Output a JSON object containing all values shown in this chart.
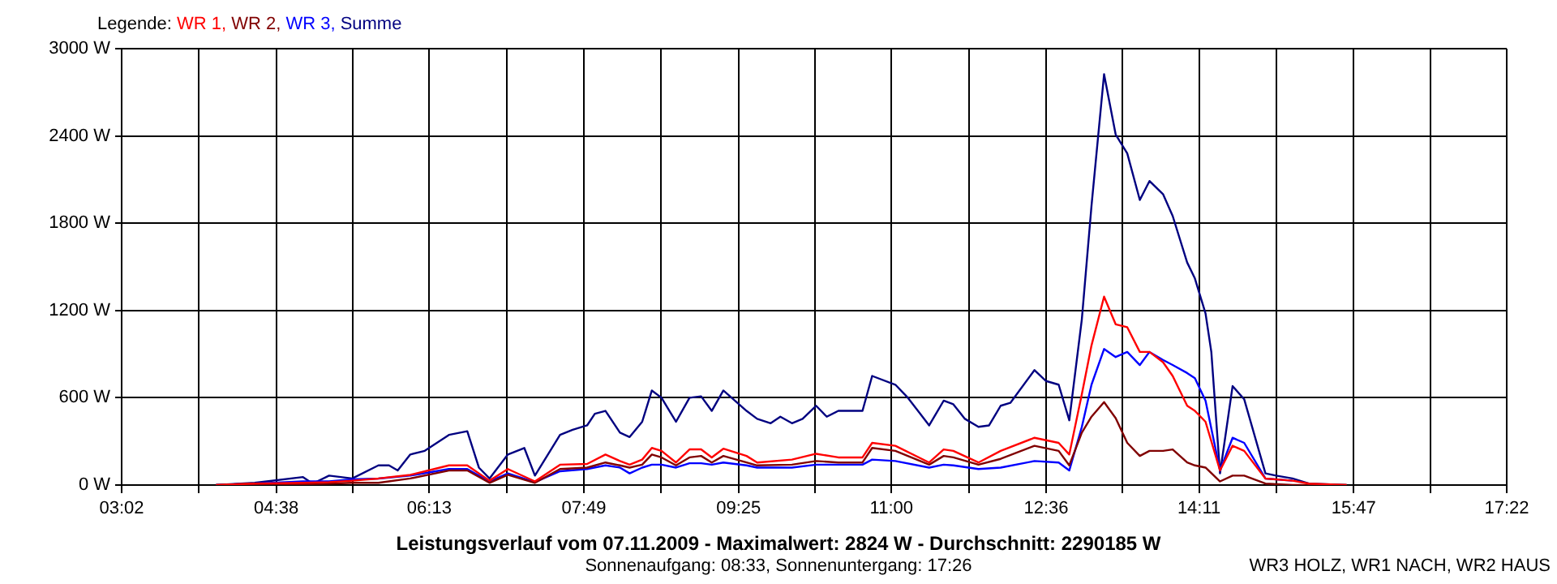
{
  "chart_data": {
    "type": "line",
    "title": "Leistungsverlauf vom 07.11.2009 - Maximalwert: 2824 W - Durchschnitt: 2290185 W",
    "subtitle": "Sonnenaufgang: 08:33, Sonnenuntergang: 17:26",
    "annotations": [
      "WR3 HOLZ, WR1 NACH, WR2 HAUS"
    ],
    "legend_title": "Legende:",
    "legend": "top left",
    "grid": true,
    "marker": "none",
    "line_style": "solid",
    "xlim": [
      3.033,
      17.367
    ],
    "xticks": [
      {
        "value": 3.033,
        "label": "03:02"
      },
      {
        "value": 3.83,
        "label": null
      },
      {
        "value": 4.633,
        "label": "04:38"
      },
      {
        "value": 5.425,
        "label": null
      },
      {
        "value": 6.217,
        "label": "06:13"
      },
      {
        "value": 7.017,
        "label": null
      },
      {
        "value": 7.817,
        "label": "07:49"
      },
      {
        "value": 8.617,
        "label": null
      },
      {
        "value": 9.417,
        "label": "09:25"
      },
      {
        "value": 10.208,
        "label": null
      },
      {
        "value": 11.0,
        "label": "11:00"
      },
      {
        "value": 11.8,
        "label": null
      },
      {
        "value": 12.6,
        "label": "12:36"
      },
      {
        "value": 13.392,
        "label": null
      },
      {
        "value": 14.183,
        "label": "14:11"
      },
      {
        "value": 14.983,
        "label": null
      },
      {
        "value": 15.783,
        "label": "15:47"
      },
      {
        "value": 16.575,
        "label": null
      },
      {
        "value": 17.367,
        "label": "17:22"
      }
    ],
    "ylim": [
      0,
      3000
    ],
    "yticks": [
      {
        "value": 0,
        "label": "0 W"
      },
      {
        "value": 600,
        "label": "600 W"
      },
      {
        "value": 1200,
        "label": "1200 W"
      },
      {
        "value": 1800,
        "label": "1800 W"
      },
      {
        "value": 2400,
        "label": "2400 W"
      },
      {
        "value": 3000,
        "label": "3000 W"
      }
    ],
    "x": [
      4.01,
      4.41,
      4.91,
      5.18,
      5.42,
      5.69,
      6.02,
      6.42,
      6.61,
      6.84,
      7.03,
      7.31,
      7.57,
      7.85,
      8.04,
      8.19,
      8.29,
      8.42,
      8.52,
      8.62,
      8.77,
      8.91,
      9.03,
      9.14,
      9.26,
      9.5,
      9.61,
      9.97,
      10.22,
      10.45,
      10.7,
      10.8,
      11.04,
      11.39,
      11.54,
      11.64,
      11.9,
      12.13,
      12.48,
      12.73,
      12.84,
      12.97,
      13.07,
      13.2,
      13.32,
      13.44,
      13.57,
      13.67,
      13.81,
      13.91,
      14.06,
      14.14,
      14.25,
      14.4,
      14.53,
      14.65,
      14.87,
      15.15,
      15.32,
      15.71
    ],
    "series": [
      {
        "name": "WR 1,",
        "color": "#ff0000",
        "values": [
          0,
          10,
          15,
          20,
          30,
          45,
          70,
          135,
          135,
          30,
          110,
          25,
          140,
          145,
          210,
          165,
          140,
          175,
          255,
          235,
          155,
          245,
          245,
          190,
          250,
          200,
          155,
          175,
          215,
          190,
          190,
          290,
          270,
          155,
          245,
          235,
          155,
          235,
          325,
          290,
          210,
          625,
          960,
          1295,
          1105,
          1085,
          915,
          915,
          845,
          750,
          545,
          510,
          435,
          100,
          270,
          235,
          45,
          30,
          10,
          0
        ]
      },
      {
        "name": "WR 2,",
        "color": "#800000",
        "values": [
          0,
          10,
          5,
          10,
          15,
          15,
          45,
          100,
          100,
          15,
          70,
          15,
          110,
          120,
          155,
          135,
          120,
          140,
          210,
          190,
          135,
          190,
          200,
          155,
          200,
          155,
          135,
          140,
          165,
          155,
          155,
          255,
          235,
          140,
          200,
          190,
          140,
          180,
          270,
          235,
          135,
          360,
          470,
          570,
          460,
          290,
          200,
          235,
          235,
          245,
          155,
          135,
          120,
          25,
          65,
          65,
          10,
          0,
          0,
          0
        ]
      },
      {
        "name": "WR 3,",
        "color": "#0000ff",
        "values": [
          0,
          10,
          25,
          25,
          40,
          45,
          65,
          110,
          110,
          25,
          80,
          20,
          95,
          110,
          135,
          120,
          80,
          120,
          140,
          140,
          120,
          150,
          150,
          140,
          155,
          135,
          120,
          120,
          140,
          140,
          140,
          175,
          165,
          120,
          140,
          135,
          110,
          120,
          165,
          155,
          100,
          400,
          690,
          935,
          880,
          915,
          825,
          915,
          860,
          825,
          770,
          735,
          580,
          100,
          325,
          290,
          45,
          30,
          null,
          null
        ]
      },
      {
        "name": "Summe",
        "color": "#000080",
        "x": [
          4.01,
          4.41,
          4.91,
          5.01,
          5.18,
          5.42,
          5.69,
          5.8,
          5.89,
          6.02,
          6.17,
          6.42,
          6.61,
          6.73,
          6.84,
          7.03,
          7.2,
          7.31,
          7.57,
          7.7,
          7.85,
          7.93,
          8.04,
          8.19,
          8.29,
          8.42,
          8.52,
          8.62,
          8.77,
          8.91,
          9.03,
          9.14,
          9.26,
          9.5,
          9.61,
          9.75,
          9.85,
          9.97,
          10.08,
          10.22,
          10.33,
          10.45,
          10.7,
          10.8,
          11.04,
          11.17,
          11.39,
          11.54,
          11.64,
          11.76,
          11.9,
          12.01,
          12.13,
          12.23,
          12.48,
          12.6,
          12.73,
          12.84,
          12.97,
          13.07,
          13.2,
          13.32,
          13.44,
          13.57,
          13.67,
          13.81,
          13.91,
          14.06,
          14.14,
          14.25,
          14.31,
          14.4,
          14.53,
          14.65,
          14.87,
          14.98,
          15.15,
          15.32,
          15.71
        ],
        "values": [
          0,
          15,
          55,
          10,
          65,
          45,
          135,
          135,
          100,
          210,
          235,
          345,
          370,
          120,
          45,
          210,
          255,
          65,
          345,
          380,
          410,
          490,
          510,
          360,
          330,
          435,
          650,
          600,
          435,
          600,
          610,
          510,
          650,
          510,
          455,
          425,
          470,
          425,
          455,
          545,
          470,
          510,
          510,
          750,
          690,
          600,
          410,
          580,
          555,
          455,
          400,
          410,
          545,
          565,
          790,
          715,
          690,
          445,
          1140,
          1920,
          2824,
          2410,
          2280,
          1960,
          2090,
          2000,
          1850,
          1530,
          1420,
          1180,
          915,
          80,
          680,
          590,
          80,
          65,
          45,
          10,
          0
        ]
      }
    ]
  }
}
